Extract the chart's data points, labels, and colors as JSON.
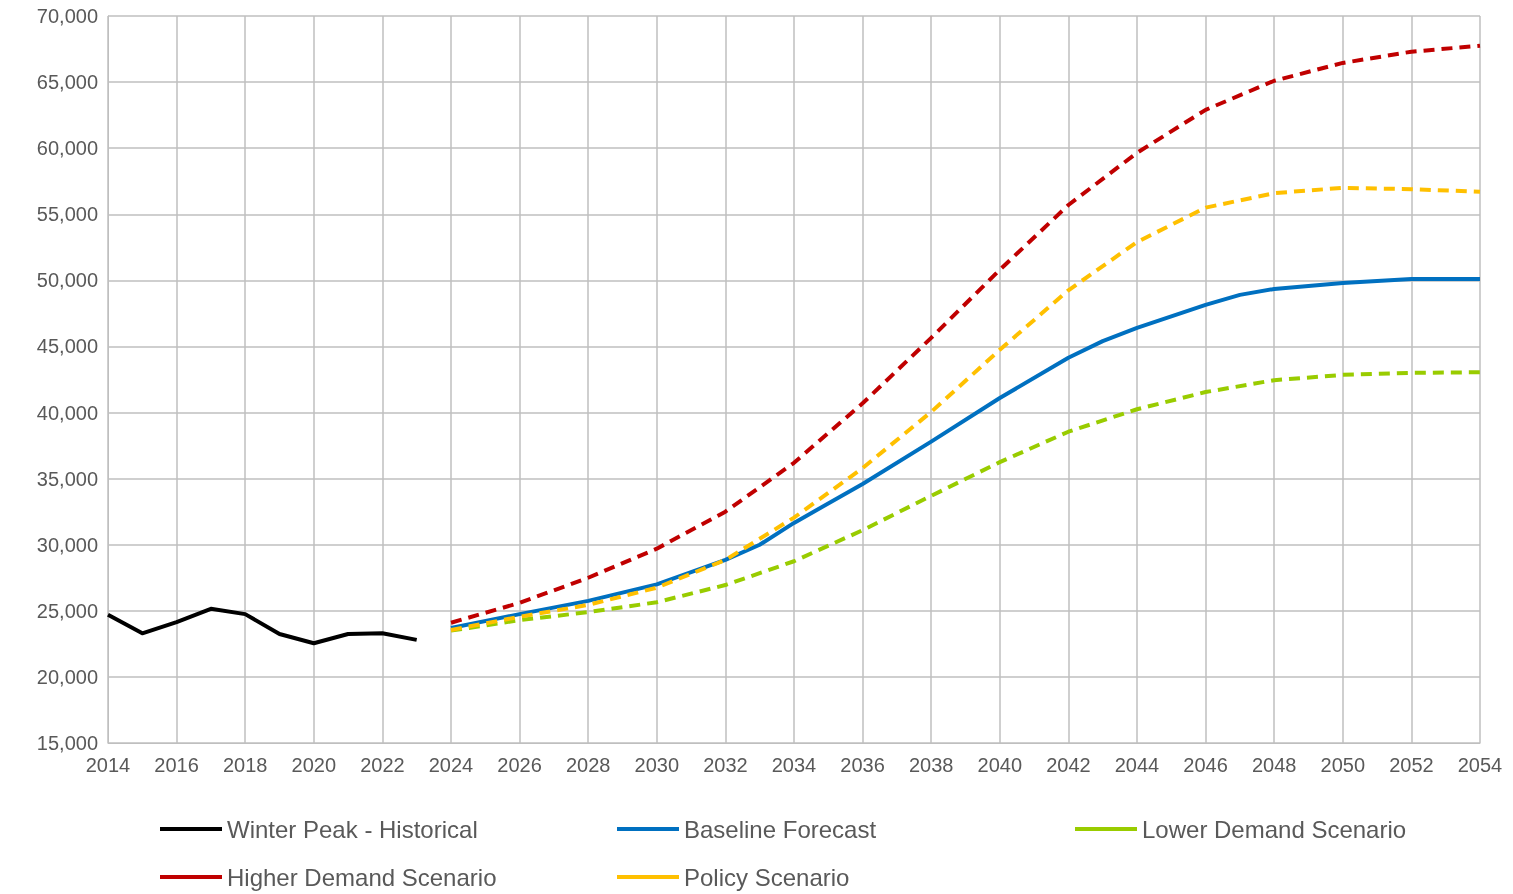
{
  "chart_data": {
    "type": "line",
    "xlim": [
      2014,
      2054
    ],
    "ylim": [
      15000,
      70000
    ],
    "xticks": [
      2014,
      2016,
      2018,
      2020,
      2022,
      2024,
      2026,
      2028,
      2030,
      2032,
      2034,
      2036,
      2038,
      2040,
      2042,
      2044,
      2046,
      2048,
      2050,
      2052,
      2054
    ],
    "yticks": [
      {
        "value": 15000,
        "label": "15,000"
      },
      {
        "value": 20000,
        "label": "20,000"
      },
      {
        "value": 25000,
        "label": "25,000"
      },
      {
        "value": 30000,
        "label": "30,000"
      },
      {
        "value": 35000,
        "label": "35,000"
      },
      {
        "value": 40000,
        "label": "40,000"
      },
      {
        "value": 45000,
        "label": "45,000"
      },
      {
        "value": 50000,
        "label": "50,000"
      },
      {
        "value": 55000,
        "label": "55,000"
      },
      {
        "value": 60000,
        "label": "60,000"
      },
      {
        "value": 65000,
        "label": "65,000"
      },
      {
        "value": 70000,
        "label": "70,000"
      }
    ],
    "grid": true,
    "legend": "bottom",
    "marker": "none",
    "series": [
      {
        "name": "Winter Peak - Historical",
        "color": "#000000",
        "line_style": "solid",
        "x": [
          2014,
          2015,
          2016,
          2017,
          2018,
          2019,
          2020,
          2021,
          2022,
          2023
        ],
        "values": [
          24700,
          23300,
          24150,
          25150,
          24750,
          23250,
          22550,
          23250,
          23300,
          22800
        ]
      },
      {
        "name": "Baseline Forecast",
        "color": "#0070c0",
        "line_style": "solid",
        "x": [
          2024,
          2026,
          2028,
          2030,
          2032,
          2033,
          2034,
          2036,
          2038,
          2040,
          2042,
          2043,
          2044,
          2046,
          2047,
          2048,
          2050,
          2052,
          2054
        ],
        "values": [
          23700,
          24750,
          25750,
          27000,
          28850,
          30000,
          31650,
          34600,
          37800,
          41100,
          44150,
          45400,
          46400,
          48150,
          48900,
          49350,
          49800,
          50100,
          50100
        ]
      },
      {
        "name": "Lower Demand Scenario",
        "color": "#99cc00",
        "line_style": "dashed",
        "x": [
          2024,
          2026,
          2028,
          2030,
          2032,
          2034,
          2036,
          2038,
          2040,
          2042,
          2044,
          2046,
          2048,
          2050,
          2052,
          2054
        ],
        "values": [
          23500,
          24300,
          24900,
          25650,
          26950,
          28750,
          31100,
          33700,
          36250,
          38550,
          40250,
          41550,
          42450,
          42850,
          43000,
          43050
        ]
      },
      {
        "name": "Higher Demand Scenario",
        "color": "#c00000",
        "line_style": "dashed",
        "x": [
          2024,
          2026,
          2028,
          2030,
          2032,
          2034,
          2036,
          2038,
          2040,
          2042,
          2044,
          2046,
          2048,
          2050,
          2052,
          2054
        ],
        "values": [
          24100,
          25600,
          27500,
          29700,
          32500,
          36200,
          40700,
          45650,
          50800,
          55700,
          59650,
          62900,
          65100,
          66450,
          67300,
          67750
        ]
      },
      {
        "name": "Policy Scenario",
        "color": "#ffc000",
        "line_style": "dashed",
        "x": [
          2024,
          2026,
          2028,
          2030,
          2032,
          2034,
          2036,
          2038,
          2040,
          2042,
          2044,
          2046,
          2048,
          2050,
          2052,
          2054
        ],
        "values": [
          23550,
          24550,
          25450,
          26750,
          28850,
          32050,
          35800,
          40050,
          44750,
          49250,
          52900,
          55500,
          56600,
          57000,
          56900,
          56700
        ]
      }
    ]
  }
}
